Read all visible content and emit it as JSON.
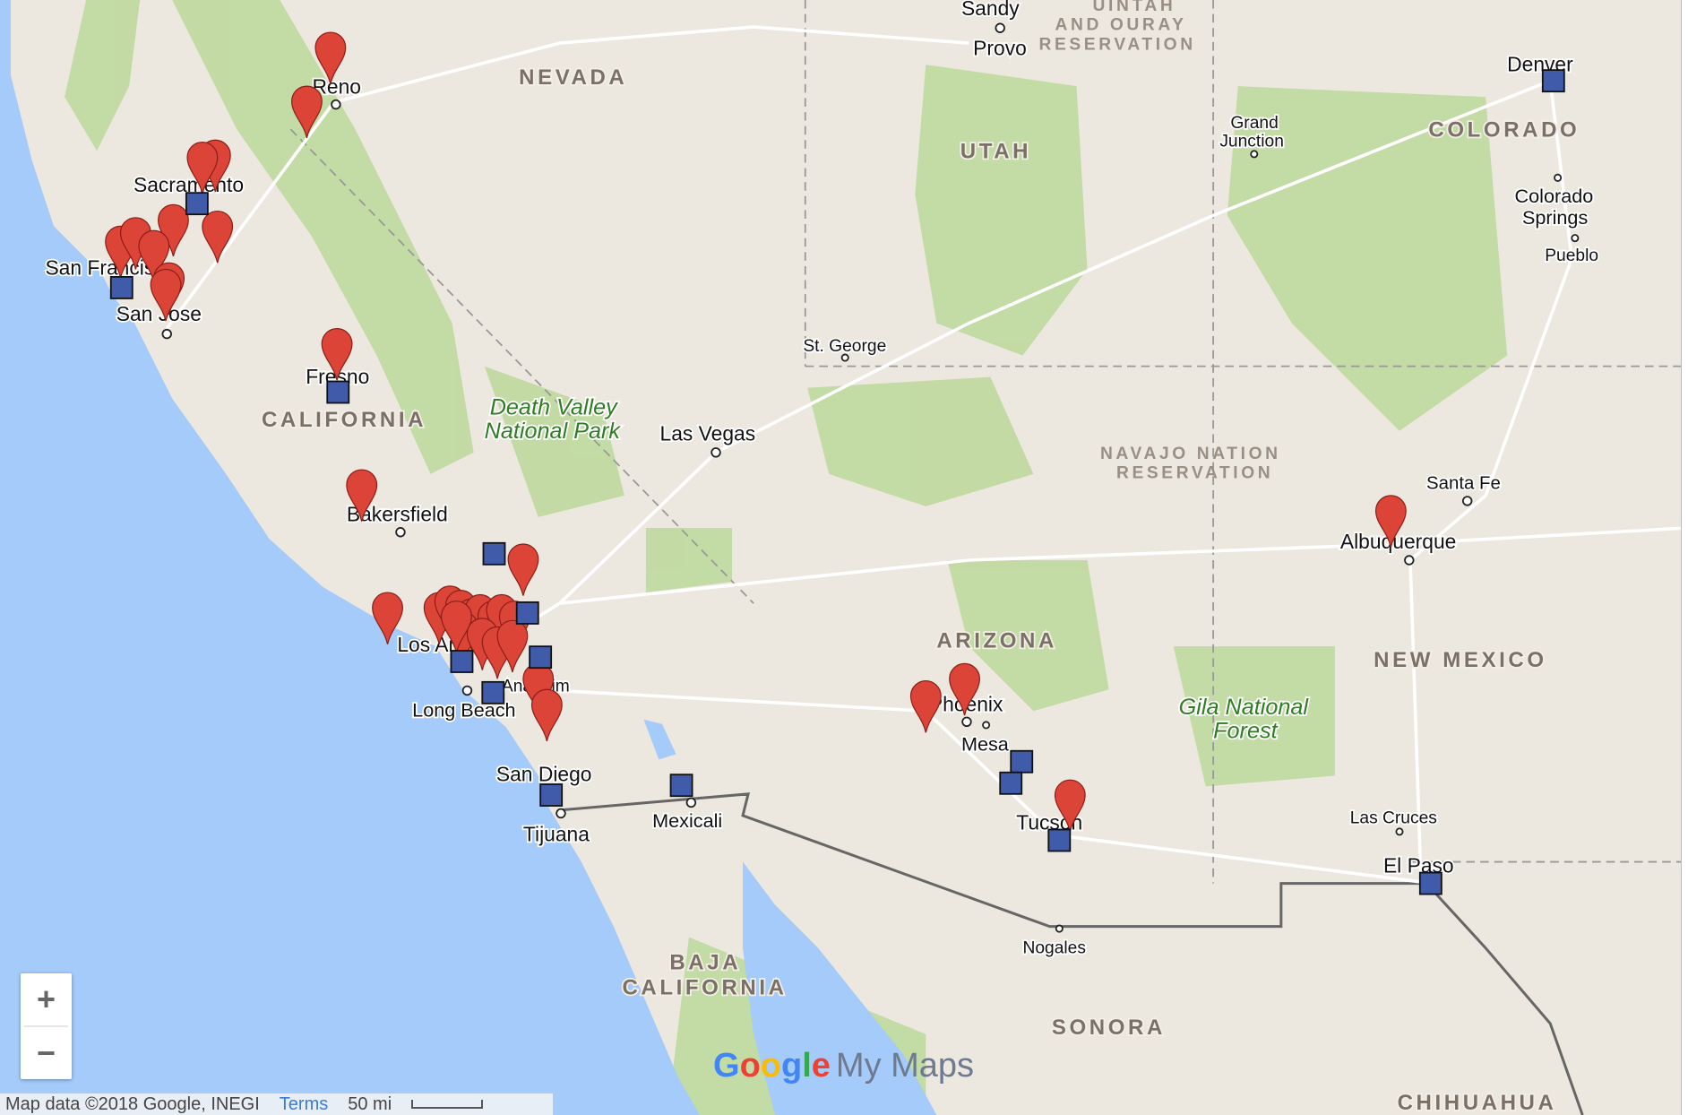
{
  "map": {
    "cities": {
      "sandy": "Sandy",
      "provo": "Provo",
      "reno": "Reno",
      "sacramento": "Sacramento",
      "san_francisco": "San Francisco",
      "san_jose": "San Jose",
      "fresno": "Fresno",
      "bakersfield": "Bakersfield",
      "las_vegas": "Las Vegas",
      "st_george": "St. George",
      "grand_junction_1": "Grand",
      "grand_junction_2": "Junction",
      "denver": "Denver",
      "colorado_springs_1": "Colorado",
      "colorado_springs_2": "Springs",
      "pueblo": "Pueblo",
      "santa_fe": "Santa Fe",
      "albuquerque": "Albuquerque",
      "los_angeles": "Los Angeles",
      "anaheim": "Anaheim",
      "long_beach": "Long Beach",
      "san_diego": "San Diego",
      "tijuana": "Tijuana",
      "mexicali": "Mexicali",
      "phoenix": "Phoenix",
      "mesa": "Mesa",
      "tucson": "Tucson",
      "nogales": "Nogales",
      "las_cruces": "Las Cruces",
      "el_paso": "El Paso"
    },
    "regions": {
      "nevada": "NEVADA",
      "utah": "UTAH",
      "colorado": "COLORADO",
      "california": "CALIFORNIA",
      "arizona": "ARIZONA",
      "new_mexico": "NEW MEXICO",
      "baja_1": "BAJA",
      "baja_2": "CALIFORNIA",
      "sonora": "SONORA",
      "chihuahua": "CHIHUAHUA"
    },
    "reservations": {
      "uintah_1": "UINTAH",
      "uintah_2": "AND OURAY",
      "uintah_3": "RESERVATION",
      "navajo_1": "NAVAJO NATION",
      "navajo_2": "RESERVATION"
    },
    "parks": {
      "death_valley_1": "Death Valley",
      "death_valley_2": "National Park",
      "gila_1": "Gila National",
      "gila_2": "Forest"
    },
    "layers": [
      {
        "type": "pin",
        "color": "#db4437"
      },
      {
        "type": "square",
        "color": "#3f5ba9"
      }
    ],
    "colors": {
      "water": "#a4cbfa",
      "land": "#ece8df",
      "vegetation": "#bcd89a"
    }
  },
  "controls": {
    "zoom_in": "+",
    "zoom_out": "−"
  },
  "footer": {
    "attribution": "Map data ©2018 Google, INEGI",
    "terms": "Terms",
    "scale": "50 mi"
  },
  "logo": {
    "google": "Google",
    "product": "My Maps"
  }
}
